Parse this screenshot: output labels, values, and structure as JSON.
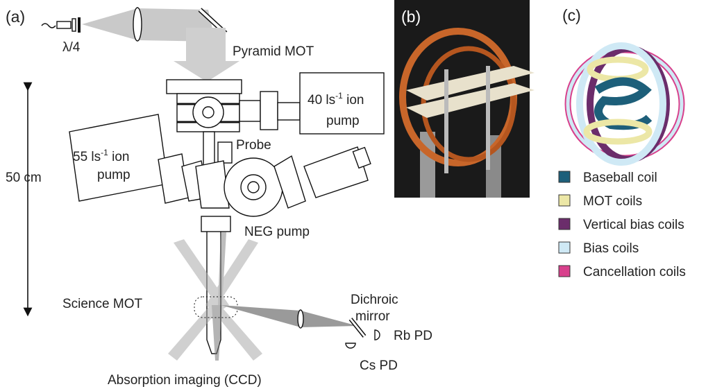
{
  "panels": {
    "a": "(a)",
    "b": "(b)",
    "c": "(c)"
  },
  "labels": {
    "quarter_wave": "λ/4",
    "pyramid_mot": "Pyramid MOT",
    "ion_pump_40": {
      "prefix": "40 ls",
      "sup": "-1",
      "rest": " ion",
      "line2": "pump"
    },
    "ion_pump_55": {
      "prefix": "55 ls",
      "sup": "-1",
      "rest": " ion",
      "line2": "pump"
    },
    "probe": "Probe",
    "scale": "50 cm",
    "neg_pump": "NEG pump",
    "dichroic": {
      "line1": "Dichroic",
      "line2": "mirror"
    },
    "science_mot": "Science MOT",
    "rb_pd": "Rb PD",
    "cs_pd": "Cs PD",
    "absorption": "Absorption imaging (CCD)"
  },
  "legend": [
    {
      "label": "Baseball coil",
      "color": "#1d5f7a"
    },
    {
      "label": "MOT coils",
      "color": "#ece7a6"
    },
    {
      "label": "Vertical bias coils",
      "color": "#6b2d6b"
    },
    {
      "label": "Bias coils",
      "color": "#cfe9f5"
    },
    {
      "label": "Cancellation coils",
      "color": "#d8408c"
    }
  ]
}
